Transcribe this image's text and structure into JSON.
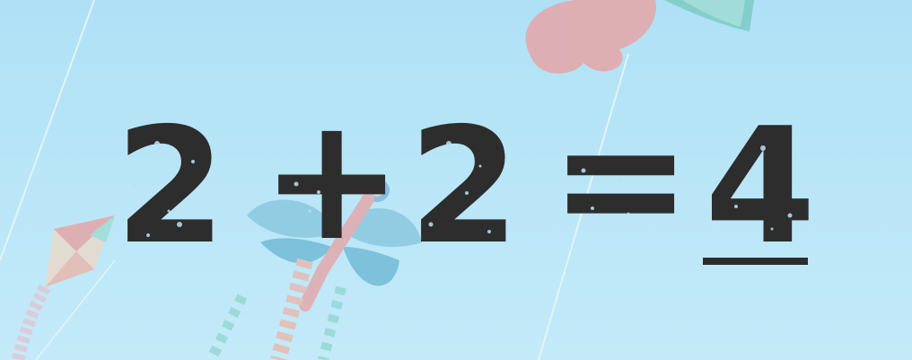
{
  "equation": {
    "operand_a": "2",
    "operator": "+",
    "operand_b": "2",
    "equals": "=",
    "answer": "4"
  },
  "colors": {
    "sky": "#b3e3f6",
    "ink": "#2d2d2d",
    "kite_red": "#f08a86",
    "kite_teal": "#5fbfb0",
    "dragonfly_blue": "#6fb8d4"
  },
  "icons": {
    "background": [
      "kite-icon",
      "dragonfly-kite-icon",
      "kite-string-icon"
    ]
  }
}
